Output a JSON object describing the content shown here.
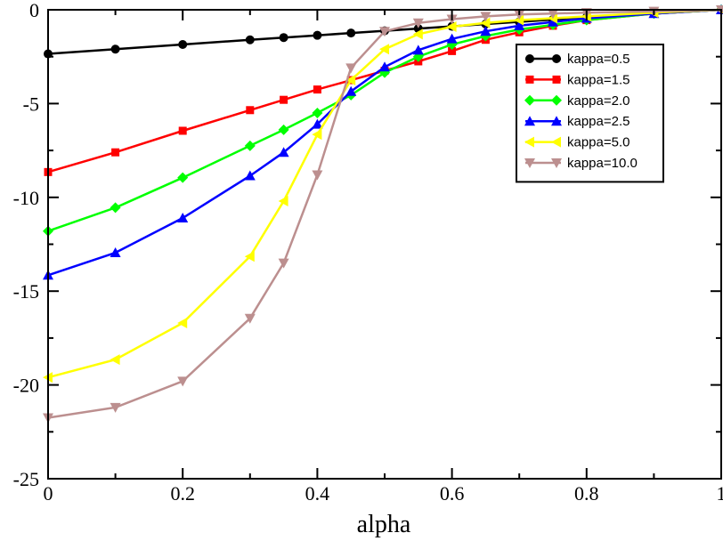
{
  "chart_data": {
    "type": "line",
    "title": "",
    "xlabel": "alpha",
    "ylabel": "",
    "xlim": [
      0,
      1
    ],
    "ylim": [
      -25,
      0
    ],
    "x_ticks": [
      0,
      0.2,
      0.4,
      0.6,
      0.8,
      1
    ],
    "y_ticks": [
      -25,
      -20,
      -15,
      -10,
      -5,
      0
    ],
    "x_tick_labels": [
      "0",
      "0.2",
      "0.4",
      "0.6",
      "0.8",
      "1"
    ],
    "y_tick_labels": [
      "-25",
      "-20",
      "-15",
      "-10",
      "-5",
      "0"
    ],
    "grid": false,
    "legend_position": "top-right",
    "series": [
      {
        "name": "kappa=0.5",
        "color": "#000000",
        "marker": "circle",
        "x": [
          0,
          0.1,
          0.2,
          0.3,
          0.35,
          0.4,
          0.45,
          0.5,
          0.55,
          0.6,
          0.65,
          0.7,
          0.75,
          0.8,
          0.9,
          1.0
        ],
        "y": [
          -2.35,
          -2.1,
          -1.85,
          -1.6,
          -1.48,
          -1.36,
          -1.24,
          -1.12,
          -1.0,
          -0.88,
          -0.76,
          -0.64,
          -0.52,
          -0.4,
          -0.2,
          0.0
        ]
      },
      {
        "name": "kappa=1.5",
        "color": "#ff0000",
        "marker": "square",
        "x": [
          0,
          0.1,
          0.2,
          0.3,
          0.35,
          0.4,
          0.45,
          0.5,
          0.55,
          0.6,
          0.65,
          0.7,
          0.75,
          0.8,
          0.9,
          1.0
        ],
        "y": [
          -8.65,
          -7.6,
          -6.45,
          -5.35,
          -4.8,
          -4.25,
          -3.75,
          -3.25,
          -2.75,
          -2.2,
          -1.6,
          -1.2,
          -0.85,
          -0.55,
          -0.2,
          0.0
        ]
      },
      {
        "name": "kappa=2.0",
        "color": "#00ff00",
        "marker": "diamond",
        "x": [
          0,
          0.1,
          0.2,
          0.3,
          0.35,
          0.4,
          0.45,
          0.5,
          0.55,
          0.6,
          0.65,
          0.7,
          0.75,
          0.8,
          0.9,
          1.0
        ],
        "y": [
          -11.8,
          -10.55,
          -8.95,
          -7.25,
          -6.4,
          -5.5,
          -4.55,
          -3.35,
          -2.5,
          -1.85,
          -1.4,
          -1.05,
          -0.8,
          -0.55,
          -0.2,
          0.0
        ]
      },
      {
        "name": "kappa=2.5",
        "color": "#0000ff",
        "marker": "triangle-up",
        "x": [
          0,
          0.1,
          0.2,
          0.3,
          0.35,
          0.4,
          0.45,
          0.5,
          0.55,
          0.6,
          0.65,
          0.7,
          0.75,
          0.8,
          0.9,
          1.0
        ],
        "y": [
          -14.15,
          -12.95,
          -11.1,
          -8.85,
          -7.6,
          -6.1,
          -4.35,
          -3.05,
          -2.15,
          -1.55,
          -1.15,
          -0.85,
          -0.65,
          -0.45,
          -0.2,
          0.0
        ]
      },
      {
        "name": "kappa=5.0",
        "color": "#ffff00",
        "marker": "triangle-left",
        "x": [
          0,
          0.1,
          0.2,
          0.3,
          0.35,
          0.4,
          0.45,
          0.5,
          0.55,
          0.6,
          0.65,
          0.7,
          0.75,
          0.8,
          0.9,
          1.0
        ],
        "y": [
          -19.6,
          -18.65,
          -16.7,
          -13.15,
          -10.2,
          -6.65,
          -3.75,
          -2.1,
          -1.3,
          -0.9,
          -0.7,
          -0.55,
          -0.45,
          -0.35,
          -0.15,
          0.0
        ]
      },
      {
        "name": "kappa=10.0",
        "color": "#bc8f8f",
        "marker": "triangle-down",
        "x": [
          0,
          0.1,
          0.2,
          0.3,
          0.35,
          0.4,
          0.45,
          0.5,
          0.55,
          0.6,
          0.65,
          0.7,
          0.75,
          0.8,
          0.9,
          1.0
        ],
        "y": [
          -21.75,
          -21.2,
          -19.8,
          -16.45,
          -13.5,
          -8.8,
          -3.1,
          -1.15,
          -0.7,
          -0.5,
          -0.35,
          -0.25,
          -0.2,
          -0.15,
          -0.08,
          0.0
        ]
      }
    ]
  }
}
